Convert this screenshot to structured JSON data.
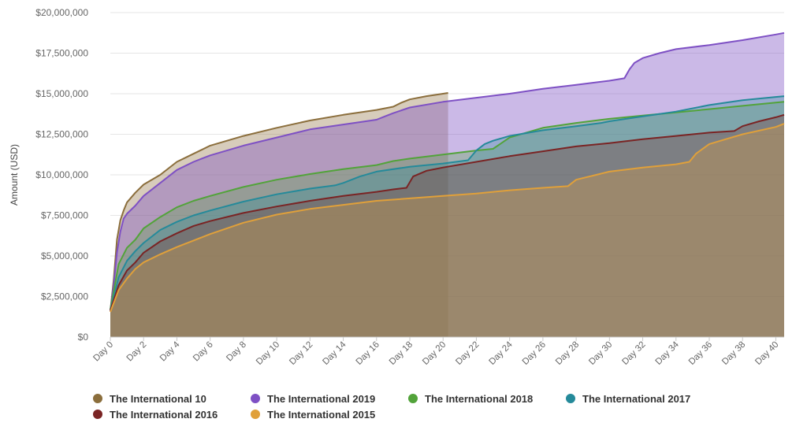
{
  "chart_data": {
    "type": "area",
    "ylabel": "Amount (USD)",
    "ylim": [
      0,
      20000000
    ],
    "y_ticks": [
      {
        "value": 0,
        "label": "$0"
      },
      {
        "value": 2500000,
        "label": "$2,500,000"
      },
      {
        "value": 5000000,
        "label": "$5,000,000"
      },
      {
        "value": 7500000,
        "label": "$7,500,000"
      },
      {
        "value": 10000000,
        "label": "$10,000,000"
      },
      {
        "value": 12500000,
        "label": "$12,500,000"
      },
      {
        "value": 15000000,
        "label": "$15,000,000"
      },
      {
        "value": 17500000,
        "label": "$17,500,000"
      },
      {
        "value": 20000000,
        "label": "$20,000,000"
      }
    ],
    "xlim": [
      0,
      40.5
    ],
    "x_ticks": [
      "Day 0",
      "Day 2",
      "Day 4",
      "Day 6",
      "Day 8",
      "Day 10",
      "Day 12",
      "Day 14",
      "Day 16",
      "Day 18",
      "Day 20",
      "Day 22",
      "Day 24",
      "Day 26",
      "Day 28",
      "Day 30",
      "Day 32",
      "Day 34",
      "Day 36",
      "Day 38",
      "Day 40"
    ],
    "grid": true,
    "legend_position": "bottom",
    "series": [
      {
        "name": "The International 10",
        "color": "#8b6e3c",
        "fill_opacity": 0.35,
        "x": [
          0,
          0.2,
          0.4,
          0.6,
          0.8,
          1,
          1.5,
          2,
          3,
          4,
          5,
          6,
          8,
          10,
          12,
          14,
          16,
          17,
          17.5,
          18,
          19,
          20,
          20.3
        ],
        "y": [
          1600000,
          3500000,
          6000000,
          7200000,
          7800000,
          8300000,
          8900000,
          9400000,
          10000000,
          10800000,
          11300000,
          11800000,
          12400000,
          12900000,
          13350000,
          13700000,
          14000000,
          14200000,
          14450000,
          14650000,
          14850000,
          15000000,
          15050000
        ]
      },
      {
        "name": "The International 2019",
        "color": "#7e50c4",
        "fill_opacity": 0.4,
        "x": [
          0,
          0.2,
          0.4,
          0.6,
          0.8,
          1,
          1.5,
          2,
          3,
          4,
          5,
          6,
          8,
          10,
          12,
          14,
          16,
          16.5,
          17,
          18,
          20,
          22,
          24,
          26,
          28,
          30,
          30.9,
          31.2,
          31.5,
          32,
          33,
          34,
          36,
          38,
          40,
          40.5
        ],
        "y": [
          1600000,
          3200000,
          5200000,
          6500000,
          7300000,
          7600000,
          8100000,
          8700000,
          9500000,
          10300000,
          10800000,
          11200000,
          11800000,
          12300000,
          12800000,
          13100000,
          13400000,
          13600000,
          13800000,
          14150000,
          14500000,
          14750000,
          15000000,
          15300000,
          15550000,
          15800000,
          15950000,
          16500000,
          16900000,
          17200000,
          17500000,
          17750000,
          18000000,
          18300000,
          18650000,
          18750000
        ]
      },
      {
        "name": "The International 2018",
        "color": "#52a33a",
        "fill_opacity": 0.3,
        "x": [
          0,
          0.5,
          1,
          1.5,
          2,
          3,
          4,
          5,
          6,
          8,
          10,
          12,
          14,
          16,
          17,
          18,
          20,
          22,
          23,
          24,
          26,
          28,
          30,
          32,
          34,
          36,
          38,
          40,
          40.5
        ],
        "y": [
          1700000,
          4500000,
          5500000,
          6000000,
          6700000,
          7400000,
          8000000,
          8400000,
          8700000,
          9250000,
          9700000,
          10050000,
          10350000,
          10600000,
          10850000,
          11000000,
          11250000,
          11500000,
          11600000,
          12300000,
          12900000,
          13200000,
          13450000,
          13650000,
          13850000,
          14050000,
          14250000,
          14450000,
          14500000
        ]
      },
      {
        "name": "The International 2017",
        "color": "#258a9a",
        "fill_opacity": 0.3,
        "x": [
          0,
          0.5,
          1,
          1.5,
          2,
          3,
          4,
          5,
          6,
          8,
          10,
          12,
          13.5,
          14,
          15,
          16,
          18,
          20,
          21.5,
          22,
          22.5,
          23,
          24,
          26,
          28,
          29.5,
          30,
          32,
          34,
          36,
          38,
          40,
          40.5
        ],
        "y": [
          1650000,
          3700000,
          4700000,
          5300000,
          5800000,
          6600000,
          7100000,
          7500000,
          7800000,
          8350000,
          8800000,
          9150000,
          9350000,
          9500000,
          9900000,
          10200000,
          10500000,
          10700000,
          10900000,
          11500000,
          11900000,
          12100000,
          12400000,
          12750000,
          13000000,
          13200000,
          13300000,
          13600000,
          13900000,
          14300000,
          14600000,
          14800000,
          14850000
        ]
      },
      {
        "name": "The International 2016",
        "color": "#7a2424",
        "fill_opacity": 0.3,
        "x": [
          0,
          0.5,
          1,
          1.5,
          2,
          3,
          4,
          5,
          6,
          8,
          10,
          12,
          14,
          16,
          17,
          17.8,
          18.2,
          19,
          20,
          22,
          24,
          26,
          28,
          30,
          32,
          34,
          36,
          37.5,
          38,
          39,
          40,
          40.5
        ],
        "y": [
          1650000,
          3200000,
          4100000,
          4600000,
          5200000,
          5900000,
          6400000,
          6850000,
          7150000,
          7650000,
          8050000,
          8400000,
          8700000,
          8950000,
          9100000,
          9200000,
          9900000,
          10250000,
          10450000,
          10800000,
          11150000,
          11450000,
          11750000,
          11950000,
          12200000,
          12400000,
          12600000,
          12700000,
          13000000,
          13300000,
          13550000,
          13700000
        ]
      },
      {
        "name": "The International 2015",
        "color": "#e0a03a",
        "fill_opacity": 0.3,
        "x": [
          0,
          0.5,
          1,
          1.5,
          2,
          3,
          4,
          5,
          6,
          8,
          10,
          12,
          14,
          16,
          18,
          20,
          22,
          24,
          26,
          27.5,
          28,
          30,
          32,
          34,
          34.8,
          35.2,
          36,
          37,
          38,
          40,
          40.5
        ],
        "y": [
          1550000,
          2900000,
          3600000,
          4200000,
          4600000,
          5100000,
          5550000,
          5950000,
          6350000,
          7050000,
          7550000,
          7900000,
          8150000,
          8400000,
          8550000,
          8700000,
          8850000,
          9050000,
          9200000,
          9300000,
          9700000,
          10200000,
          10450000,
          10650000,
          10800000,
          11300000,
          11900000,
          12200000,
          12500000,
          12950000,
          13150000
        ]
      }
    ]
  }
}
